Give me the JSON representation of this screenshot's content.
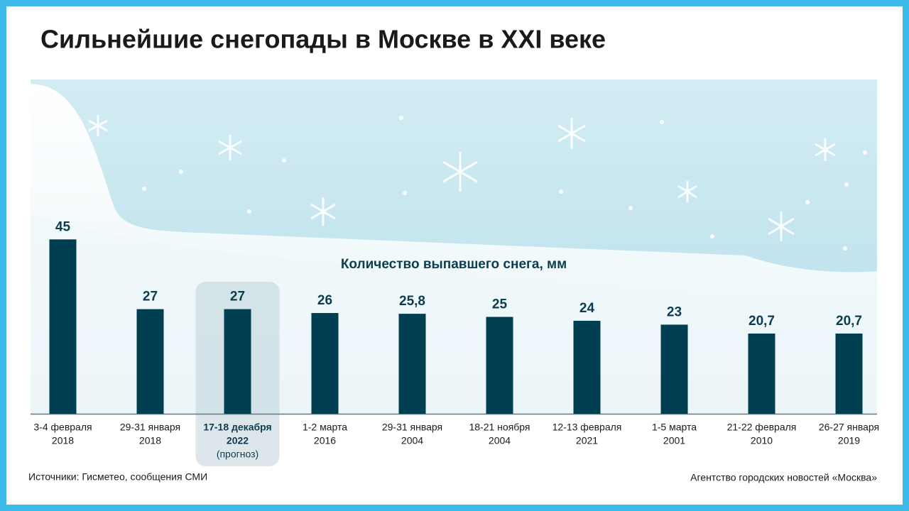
{
  "chart_data": {
    "type": "bar",
    "title": "Сильнейшие снегопады в Москве в XXI веке",
    "subtitle": "Количество выпавшего снега, мм",
    "categories": [
      [
        "3-4 февраля",
        "2018"
      ],
      [
        "29-31 января",
        "2018"
      ],
      [
        "17-18 декабря",
        "2022",
        "(прогноз)"
      ],
      [
        "1-2 марта",
        "2016"
      ],
      [
        "29-31 января",
        "2004"
      ],
      [
        "18-21 ноября",
        "2004"
      ],
      [
        "12-13 февраля",
        "2021"
      ],
      [
        "1-5 марта",
        "2001"
      ],
      [
        "21-22 февраля",
        "2010"
      ],
      [
        "26-27 января",
        "2019"
      ]
    ],
    "values": [
      45,
      27,
      27,
      26,
      25.8,
      25,
      24,
      23,
      20.7,
      20.7
    ],
    "value_labels": [
      "45",
      "27",
      "27",
      "26",
      "25,8",
      "25",
      "24",
      "23",
      "20,7",
      "20,7"
    ],
    "color": "#003f52",
    "highlight": 2,
    "ylim": [
      0,
      50
    ]
  },
  "footer": {
    "sources": "Источники: Гисметео, сообщения СМИ",
    "agency": "Агентство городских новостей «Москва»"
  }
}
